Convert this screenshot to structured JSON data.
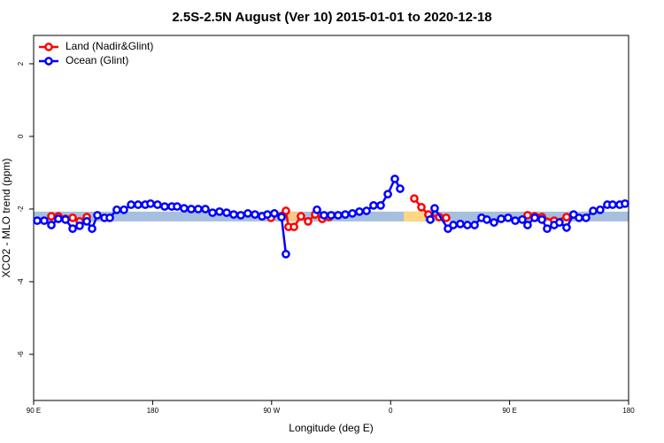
{
  "chart_data": {
    "type": "line",
    "title": "2.5S-2.5N August (Ver 10)   2015-01-01 to 2020-12-18",
    "x_label": "Longitude (deg E)",
    "y_label": "XCO2 - MLO trend (ppm)",
    "xlim": [
      90,
      540
    ],
    "ylim": [
      -7.27,
      2.78
    ],
    "xticks": [
      {
        "value": 90,
        "label": "90 E"
      },
      180,
      {
        "value": 270,
        "label": "90 W"
      },
      {
        "value": 360,
        "label": "0"
      },
      {
        "value": 450,
        "label": "90 E"
      },
      {
        "value": 540,
        "label": "180"
      }
    ],
    "yticks": [
      2,
      0,
      -2,
      -4,
      -6
    ],
    "legend": "top-left",
    "bands": [
      {
        "x": [
          90,
          540
        ],
        "y": [
          -2.34,
          -2.07
        ],
        "color": "#a7bfde"
      },
      {
        "x": [
          282,
          292
        ],
        "y": [
          -2.34,
          -2.07
        ],
        "color": "#f5c98a"
      },
      {
        "x": [
          370,
          386
        ],
        "y": [
          -2.34,
          -2.07
        ],
        "color": "#ffd780"
      }
    ],
    "series": [
      {
        "name": "Ocean (Glint)",
        "color": "#0000ff",
        "x": [
          92.7,
          98.0,
          103.4,
          108.7,
          114.1,
          119.5,
          124.8,
          130.2,
          134.2,
          138.2,
          143.6,
          147.6,
          152.9,
          158.3,
          163.7,
          169.0,
          174.4,
          178.4,
          183.7,
          189.1,
          194.5,
          198.5,
          203.8,
          209.2,
          214.5,
          219.9,
          225.3,
          230.6,
          236.0,
          241.3,
          246.7,
          252.0,
          257.4,
          262.8,
          266.8,
          272.1,
          277.5,
          280.8,
          290,
          304.3,
          309.6,
          315.0,
          320.3,
          325.7,
          331.1,
          336.4,
          341.8,
          347.1,
          352.5,
          357.9,
          363.2,
          367.2,
          380,
          390.0,
          393.3,
          403.4,
          407.4,
          412.7,
          418.1,
          423.5,
          428.8,
          432.8,
          438.2,
          443.6,
          448.9,
          454.3,
          459.6,
          463.6,
          469.0,
          474.4,
          478.4,
          483.7,
          487.7,
          493.1,
          498.4,
          502.5,
          507.8,
          513.2,
          518.5,
          523.9,
          527.9,
          533.3,
          537.3
        ],
        "values": [
          -2.32,
          -2.32,
          -2.44,
          -2.27,
          -2.29,
          -2.54,
          -2.46,
          -2.34,
          -2.54,
          -2.17,
          -2.24,
          -2.24,
          -2.02,
          -2.02,
          -1.88,
          -1.88,
          -1.88,
          -1.85,
          -1.88,
          -1.93,
          -1.93,
          -1.93,
          -1.98,
          -2.0,
          -2.0,
          -2.0,
          -2.1,
          -2.07,
          -2.1,
          -2.15,
          -2.17,
          -2.12,
          -2.15,
          -2.2,
          -2.15,
          -2.12,
          -2.22,
          -3.24,
          null,
          -2.02,
          -2.17,
          -2.17,
          -2.17,
          -2.15,
          -2.12,
          -2.07,
          -2.05,
          -1.9,
          -1.9,
          -1.59,
          -1.17,
          -1.44,
          null,
          -2.29,
          -1.98,
          -2.54,
          -2.44,
          -2.41,
          -2.44,
          -2.44,
          -2.24,
          -2.29,
          -2.37,
          -2.27,
          -2.24,
          -2.32,
          -2.29,
          -2.44,
          -2.24,
          -2.29,
          -2.54,
          -2.44,
          -2.37,
          -2.51,
          -2.15,
          -2.24,
          -2.24,
          -2.05,
          -2.02,
          -1.88,
          -1.88,
          -1.88,
          -1.85
        ]
      },
      {
        "name": "Land (Nadir&Glint)",
        "color": "#ff0000",
        "x": [
          103.4,
          108.7,
          114.1,
          119.5,
          124.8,
          130.2,
          150,
          269.5,
          280.8,
          282.8,
          286.9,
          292.2,
          297.6,
          302.9,
          308.3,
          313.6,
          340,
          377.9,
          383.3,
          388.6,
          396.7,
          402.0,
          430,
          463.6,
          469.0,
          474.4,
          483.7,
          493.1
        ],
        "values": [
          -2.2,
          -2.2,
          -2.27,
          -2.24,
          -2.34,
          -2.22,
          null,
          -2.24,
          -2.05,
          -2.49,
          -2.49,
          -2.2,
          -2.34,
          -2.15,
          -2.27,
          -2.22,
          null,
          -1.71,
          -1.95,
          -2.15,
          -2.22,
          -2.24,
          null,
          -2.17,
          -2.2,
          -2.22,
          -2.32,
          -2.22
        ]
      }
    ]
  }
}
